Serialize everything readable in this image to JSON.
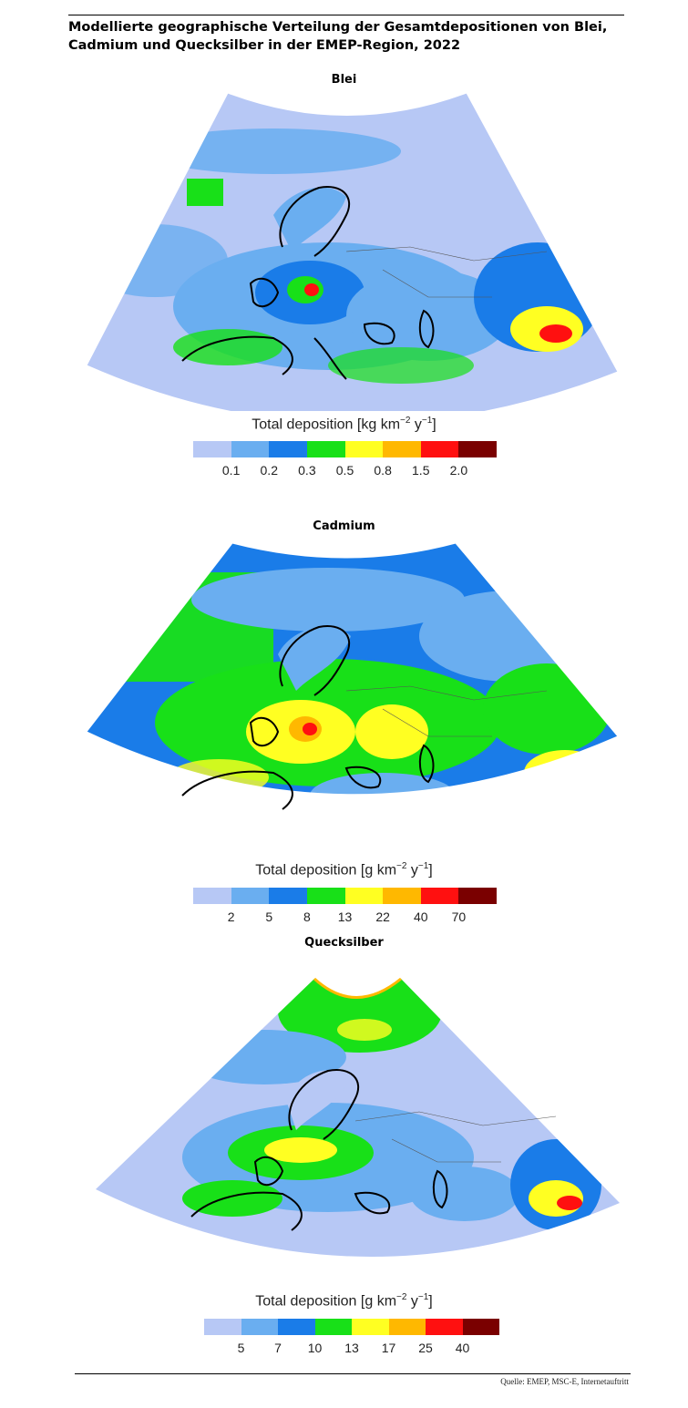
{
  "title": "Modellierte geographische Verteilung der Gesamtdepositionen von Blei, Cadmium und Quecksilber in der EMEP-Region, 2022",
  "legend_colors": [
    "#b7c8f5",
    "#6aaef0",
    "#1a7ce8",
    "#18e018",
    "#ffff22",
    "#ffb800",
    "#ff1010",
    "#7a0000"
  ],
  "panels": [
    {
      "name": "Blei",
      "legend_title_prefix": "Total deposition [kg km",
      "legend_title_exp1": "−2",
      "legend_title_mid": " y",
      "legend_title_exp2": "−1",
      "legend_title_suffix": "]",
      "ticks": [
        "0.1",
        "0.2",
        "0.3",
        "0.5",
        "0.8",
        "1.5",
        "2.0"
      ]
    },
    {
      "name": "Cadmium",
      "legend_title_prefix": "Total deposition [g km",
      "legend_title_exp1": "−2",
      "legend_title_mid": " y",
      "legend_title_exp2": "−1",
      "legend_title_suffix": "]",
      "ticks": [
        "2",
        "5",
        "8",
        "13",
        "22",
        "40",
        "70"
      ]
    },
    {
      "name": "Quecksilber",
      "legend_title_prefix": "Total deposition [g km",
      "legend_title_exp1": "−2",
      "legend_title_mid": " y",
      "legend_title_exp2": "−1",
      "legend_title_suffix": "]",
      "ticks": [
        "5",
        "7",
        "10",
        "13",
        "17",
        "25",
        "40"
      ]
    }
  ],
  "source": "Quelle: EMEP, MSC-E, Internetauftritt"
}
